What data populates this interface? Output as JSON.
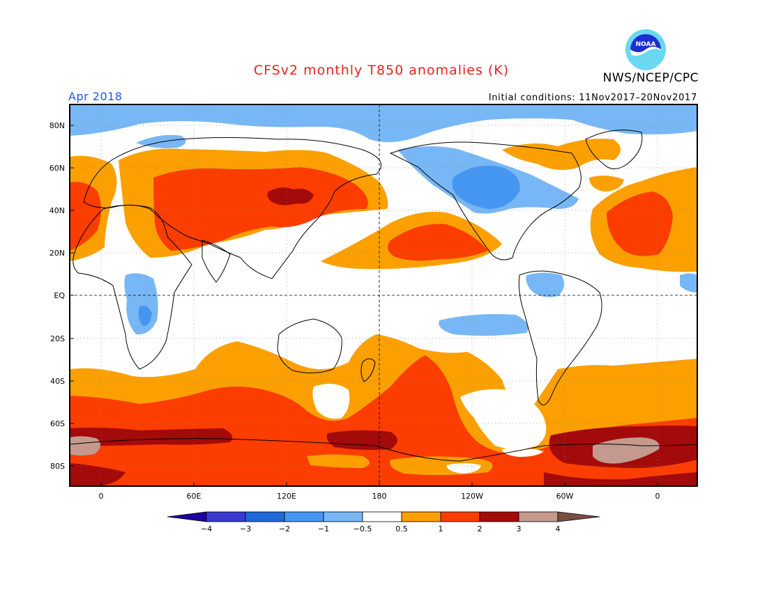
{
  "header": {
    "title": "CFSv2 monthly T850 anomalies (K)",
    "agency": "NWS/NCEP/CPC",
    "valid_month": "Apr 2018",
    "initial_conditions": "Initial conditions: 11Nov2017–20Nov2017",
    "logo_text": "NOAA"
  },
  "map": {
    "lat_labels": [
      "80N",
      "60N",
      "40N",
      "20N",
      "EQ",
      "20S",
      "40S",
      "60S",
      "80S"
    ],
    "lon_labels": [
      "0",
      "60E",
      "120E",
      "180",
      "120W",
      "60W",
      "0"
    ]
  },
  "colorbar": {
    "ticks": [
      "−4",
      "−3",
      "−2",
      "−1",
      "−0.5",
      "0.5",
      "1",
      "2",
      "3",
      "4"
    ],
    "colors": {
      "lt_m4": "#1e00a0",
      "m4_m3": "#3a3ad0",
      "m3_m2": "#1f6ad8",
      "m2_m1": "#4596f0",
      "m1_m05": "#78b7f5",
      "m05_05": "#ffffff",
      "p05_1": "#fba000",
      "p1_2": "#fb3d00",
      "p2_3": "#a30a0a",
      "p3_4": "#c49a8e",
      "gt_4": "#7a4e40"
    }
  }
}
